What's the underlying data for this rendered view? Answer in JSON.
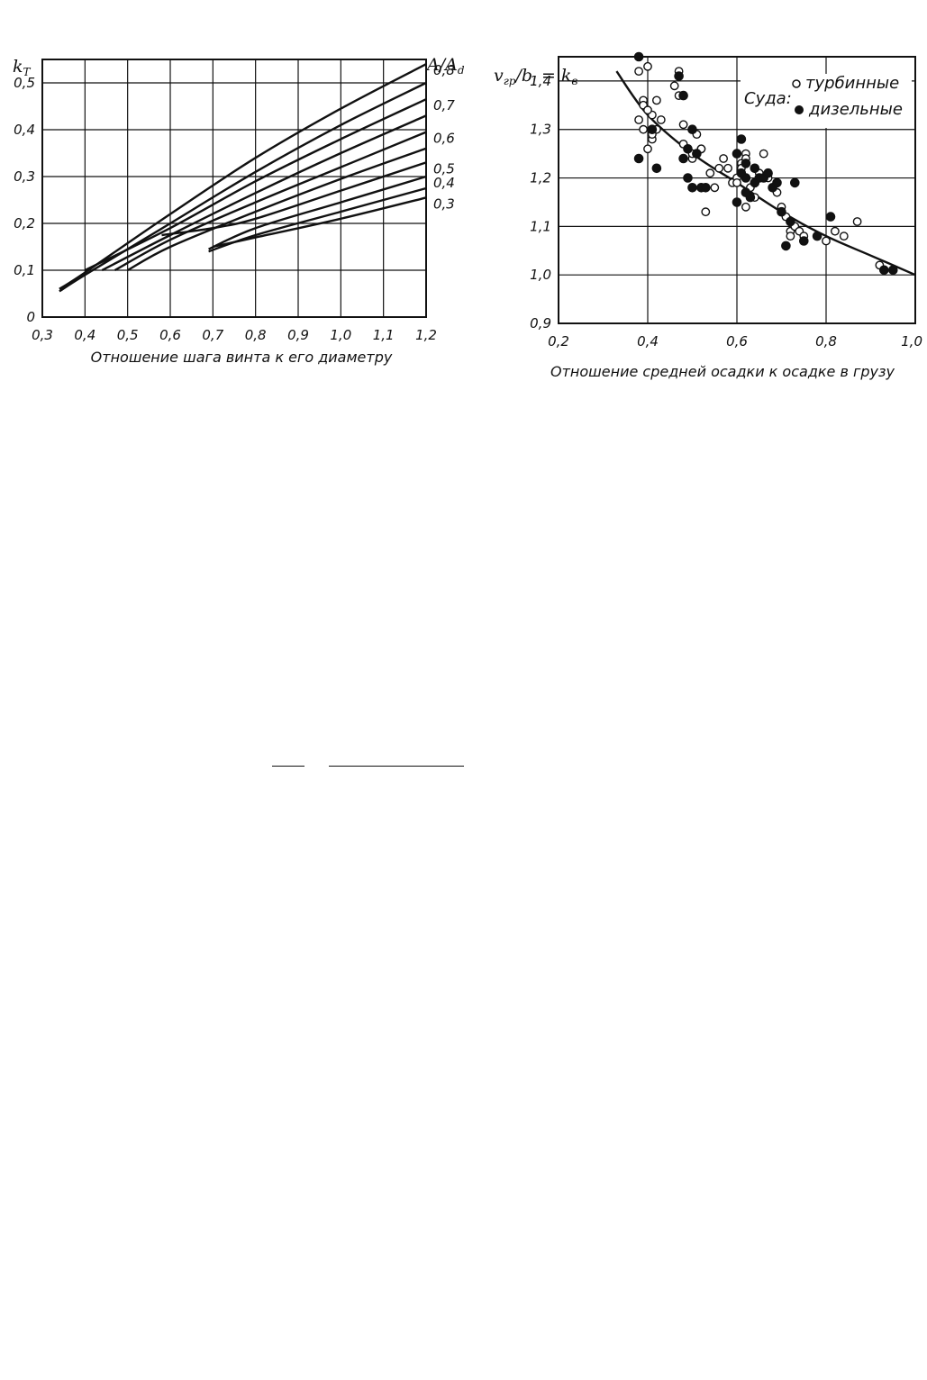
{
  "chart_data": [
    {
      "type": "line",
      "ylabel": "k",
      "ylabel_sub": "T",
      "xlabel": "Отношение шага винта к его диаметру",
      "right_label": "A/A",
      "right_label_sub": "d",
      "xlim": [
        0.3,
        1.2
      ],
      "ylim": [
        0,
        0.55
      ],
      "xticks": [
        0.3,
        0.4,
        0.5,
        0.6,
        0.7,
        0.8,
        0.9,
        1.0,
        1.1,
        1.2
      ],
      "xtick_labels": [
        "0,3",
        "0,4",
        "0,5",
        "0,6",
        "0,7",
        "0,8",
        "0,9",
        "1,0",
        "1,1",
        "1,2"
      ],
      "yticks": [
        0,
        0.1,
        0.2,
        0.3,
        0.4,
        0.5
      ],
      "ytick_labels": [
        "0",
        "0,1",
        "0,2",
        "0,3",
        "0,4",
        "0,5"
      ],
      "grid": true,
      "series": [
        {
          "name": "0,8",
          "x": [
            0.34,
            0.4,
            0.6,
            0.8,
            1.0,
            1.2
          ],
          "y": [
            0.06,
            0.095,
            0.22,
            0.34,
            0.445,
            0.54
          ]
        },
        {
          "name": "",
          "x": [
            0.34,
            0.4,
            0.6,
            0.8,
            1.0,
            1.2
          ],
          "y": [
            0.055,
            0.09,
            0.2,
            0.31,
            0.41,
            0.5
          ]
        },
        {
          "name": "0,7",
          "x": [
            0.4,
            0.6,
            0.8,
            1.0,
            1.2
          ],
          "y": [
            0.1,
            0.19,
            0.29,
            0.38,
            0.465
          ]
        },
        {
          "name": "",
          "x": [
            0.44,
            0.6,
            0.8,
            1.0,
            1.2
          ],
          "y": [
            0.1,
            0.175,
            0.265,
            0.35,
            0.43
          ]
        },
        {
          "name": "0,6",
          "x": [
            0.47,
            0.6,
            0.8,
            1.0,
            1.2
          ],
          "y": [
            0.1,
            0.165,
            0.245,
            0.32,
            0.395
          ]
        },
        {
          "name": "",
          "x": [
            0.5,
            0.6,
            0.8,
            1.0,
            1.2
          ],
          "y": [
            0.1,
            0.15,
            0.225,
            0.295,
            0.36
          ]
        },
        {
          "name": "0,5",
          "x": [
            0.58,
            0.7,
            0.8,
            1.0,
            1.2
          ],
          "y": [
            0.175,
            0.19,
            0.21,
            0.27,
            0.33
          ]
        },
        {
          "name": "0,4",
          "x": [
            0.69,
            0.8,
            1.0,
            1.2
          ],
          "y": [
            0.145,
            0.19,
            0.245,
            0.3
          ]
        },
        {
          "name": "",
          "x": [
            0.69,
            0.8,
            1.0,
            1.2
          ],
          "y": [
            0.14,
            0.175,
            0.225,
            0.275
          ]
        },
        {
          "name": "0,3",
          "x": [
            0.7,
            0.8,
            1.0,
            1.2
          ],
          "y": [
            0.15,
            0.17,
            0.21,
            0.255
          ]
        }
      ]
    },
    {
      "type": "scatter",
      "ylabel": "v",
      "ylabel_sub1": "гр",
      "ylabel_mid": "/b",
      "ylabel_sub2": "i",
      "ylabel_eq": " = k",
      "ylabel_sub3": "в",
      "xlabel": "Отношение средней осадки к осадке в грузу",
      "legend_title": "Суда:",
      "xlim": [
        0.2,
        1.0
      ],
      "ylim": [
        0.9,
        1.45
      ],
      "xticks": [
        0.2,
        0.4,
        0.6,
        0.8,
        1.0
      ],
      "xtick_labels": [
        "0,2",
        "0,4",
        "0,6",
        "0,8",
        "1,0"
      ],
      "yticks": [
        0.9,
        1.0,
        1.1,
        1.2,
        1.3,
        1.4
      ],
      "ytick_labels": [
        "0,9",
        "1,0",
        "1,1",
        "1,2",
        "1,3",
        "1,4"
      ],
      "grid": true,
      "trend": {
        "x": [
          0.33,
          0.4,
          0.5,
          0.6,
          0.7,
          0.8,
          0.9,
          1.0
        ],
        "y": [
          1.42,
          1.33,
          1.25,
          1.19,
          1.13,
          1.08,
          1.04,
          1.0
        ]
      },
      "series": [
        {
          "name": "турбинные",
          "marker": "open",
          "x": [
            0.38,
            0.38,
            0.39,
            0.39,
            0.4,
            0.4,
            0.41,
            0.41,
            0.42,
            0.42,
            0.43,
            0.39,
            0.4,
            0.41,
            0.47,
            0.47,
            0.46,
            0.48,
            0.48,
            0.49,
            0.5,
            0.5,
            0.51,
            0.52,
            0.53,
            0.54,
            0.55,
            0.56,
            0.57,
            0.58,
            0.59,
            0.6,
            0.61,
            0.62,
            0.62,
            0.63,
            0.64,
            0.65,
            0.66,
            0.67,
            0.69,
            0.7,
            0.71,
            0.72,
            0.73,
            0.74,
            0.75,
            0.78,
            0.8,
            0.82,
            0.84,
            0.87,
            0.92,
            0.52,
            0.6,
            0.62,
            0.72,
            0.61
          ],
          "y": [
            1.42,
            1.32,
            1.36,
            1.3,
            1.43,
            1.26,
            1.33,
            1.28,
            1.36,
            1.3,
            1.32,
            1.35,
            1.34,
            1.29,
            1.42,
            1.37,
            1.39,
            1.31,
            1.27,
            1.2,
            1.24,
            1.25,
            1.29,
            1.26,
            1.13,
            1.21,
            1.18,
            1.22,
            1.24,
            1.22,
            1.19,
            1.2,
            1.23,
            1.25,
            1.14,
            1.18,
            1.16,
            1.21,
            1.25,
            1.2,
            1.17,
            1.14,
            1.12,
            1.09,
            1.1,
            1.09,
            1.08,
            1.08,
            1.07,
            1.09,
            1.08,
            1.11,
            1.02,
            1.26,
            1.19,
            1.24,
            1.08,
            1.22
          ]
        },
        {
          "name": "дизельные",
          "marker": "filled",
          "x": [
            0.38,
            0.38,
            0.41,
            0.42,
            0.47,
            0.48,
            0.48,
            0.49,
            0.5,
            0.5,
            0.51,
            0.52,
            0.53,
            0.6,
            0.61,
            0.62,
            0.62,
            0.63,
            0.64,
            0.65,
            0.66,
            0.67,
            0.68,
            0.69,
            0.7,
            0.71,
            0.72,
            0.73,
            0.75,
            0.78,
            0.81,
            0.93,
            0.95,
            0.6,
            0.62,
            0.64,
            0.61,
            0.49
          ],
          "y": [
            1.45,
            1.24,
            1.3,
            1.22,
            1.41,
            1.37,
            1.24,
            1.2,
            1.3,
            1.18,
            1.25,
            1.18,
            1.18,
            1.25,
            1.28,
            1.23,
            1.2,
            1.16,
            1.19,
            1.2,
            1.2,
            1.21,
            1.18,
            1.19,
            1.13,
            1.06,
            1.11,
            1.19,
            1.07,
            1.08,
            1.12,
            1.01,
            1.01,
            1.15,
            1.17,
            1.22,
            1.21,
            1.26
          ]
        }
      ]
    }
  ]
}
